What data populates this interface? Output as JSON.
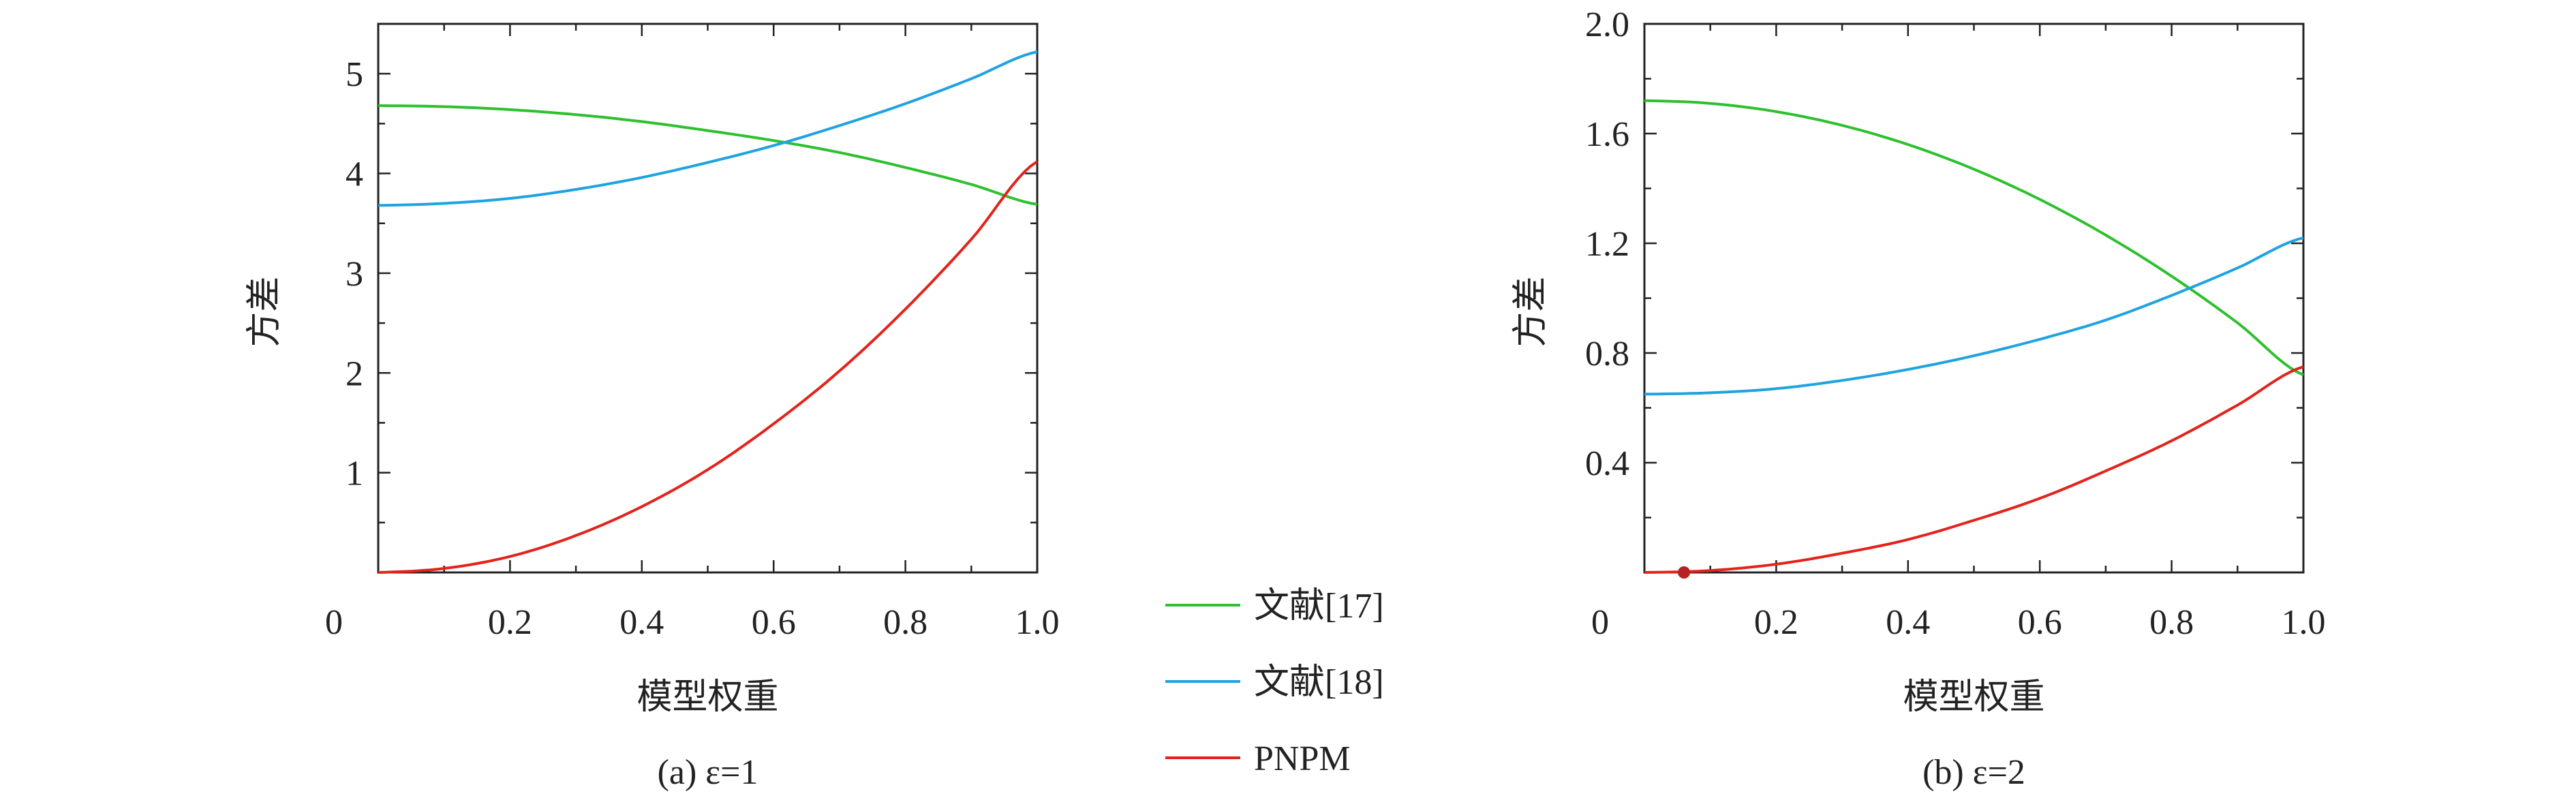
{
  "legend": [
    {
      "label": "文献[17]",
      "color": "#2ec02e"
    },
    {
      "label": "文献[18]",
      "color": "#1fa3e0"
    },
    {
      "label": "PNPM",
      "color": "#e3231b"
    }
  ],
  "chart_data": [
    {
      "type": "line",
      "title": "(a) ε=1",
      "xlabel": "模型权重",
      "ylabel": "方差",
      "xlim": [
        0,
        1
      ],
      "ylim": [
        0,
        5.5
      ],
      "xticks": [
        "0.2",
        "0.4",
        "0.6",
        "0.8",
        "1.0"
      ],
      "yticks": [
        "1",
        "2",
        "3",
        "4",
        "5"
      ],
      "origin_label": "0",
      "grid": false,
      "x": [
        0.0,
        0.1,
        0.2,
        0.3,
        0.4,
        0.5,
        0.6,
        0.7,
        0.8,
        0.9,
        1.0
      ],
      "series": [
        {
          "name": "文献[17]",
          "color": "#2ec02e",
          "values": [
            4.68,
            4.67,
            4.64,
            4.59,
            4.52,
            4.43,
            4.33,
            4.21,
            4.06,
            3.89,
            3.69
          ]
        },
        {
          "name": "文献[18]",
          "color": "#1fa3e0",
          "values": [
            3.68,
            3.7,
            3.75,
            3.84,
            3.96,
            4.11,
            4.28,
            4.48,
            4.7,
            4.95,
            5.22
          ]
        },
        {
          "name": "PNPM",
          "color": "#e3231b",
          "values": [
            0.0,
            0.04,
            0.16,
            0.37,
            0.66,
            1.03,
            1.49,
            2.02,
            2.64,
            3.34,
            4.12
          ]
        }
      ]
    },
    {
      "type": "line",
      "title": "(b) ε=2",
      "xlabel": "模型权重",
      "ylabel": "方差",
      "xlim": [
        0,
        1
      ],
      "ylim": [
        0,
        2.0
      ],
      "xticks": [
        "0.2",
        "0.4",
        "0.6",
        "0.8",
        "1.0"
      ],
      "yticks": [
        "0.4",
        "0.8",
        "1.2",
        "1.6",
        "2.0"
      ],
      "origin_label": "0",
      "grid": false,
      "x": [
        0.0,
        0.1,
        0.2,
        0.3,
        0.4,
        0.5,
        0.6,
        0.7,
        0.8,
        0.9,
        1.0
      ],
      "series": [
        {
          "name": "文献[17]",
          "color": "#2ec02e",
          "values": [
            1.72,
            1.71,
            1.68,
            1.63,
            1.56,
            1.47,
            1.36,
            1.23,
            1.08,
            0.91,
            0.72
          ]
        },
        {
          "name": "文献[18]",
          "color": "#1fa3e0",
          "values": [
            0.65,
            0.655,
            0.67,
            0.7,
            0.74,
            0.79,
            0.85,
            0.92,
            1.01,
            1.11,
            1.22
          ]
        },
        {
          "name": "PNPM",
          "color": "#e3231b",
          "values": [
            0.0,
            0.007,
            0.03,
            0.07,
            0.12,
            0.19,
            0.27,
            0.37,
            0.48,
            0.61,
            0.75
          ]
        }
      ],
      "marker": {
        "x": 0.06,
        "y": 0.0,
        "color": "#b42222"
      }
    }
  ]
}
